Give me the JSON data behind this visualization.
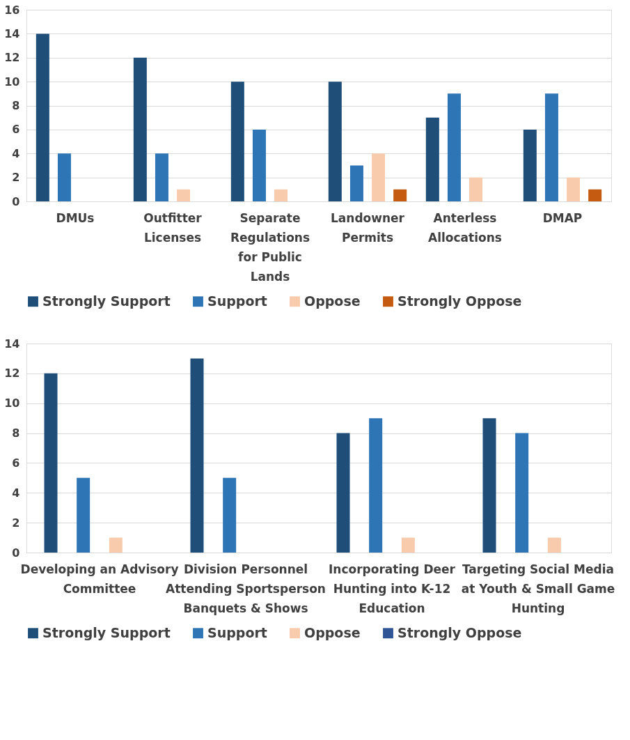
{
  "chart_data": [
    {
      "type": "bar",
      "categories": [
        "DMUs",
        "Outfitter Licenses",
        "Separate Regulations for Public Lands",
        "Landowner Permits",
        "Anterless Allocations",
        "DMAP"
      ],
      "series": [
        {
          "name": "Strongly Support",
          "color": "#1f4e79",
          "values": [
            14,
            12,
            10,
            10,
            7,
            6
          ]
        },
        {
          "name": "Support",
          "color": "#2e75b6",
          "values": [
            4,
            4,
            6,
            3,
            9,
            9
          ]
        },
        {
          "name": "Oppose",
          "color": "#f8cbad",
          "values": [
            0,
            1,
            1,
            4,
            2,
            2
          ]
        },
        {
          "name": "Strongly Oppose",
          "color": "#c55a11",
          "values": [
            0,
            0,
            0,
            1,
            0,
            1
          ]
        }
      ],
      "ylim": [
        0,
        16
      ],
      "yticks": [
        0,
        2,
        4,
        6,
        8,
        10,
        12,
        14,
        16
      ],
      "grid": "y",
      "legend": "bottom"
    },
    {
      "type": "bar",
      "categories": [
        "Developing an Advisory Committee",
        "Division Personnel Attending Sportsperson Banquets & Shows",
        "Incorporating Deer Hunting into K-12 Education",
        "Targeting Social Media at Youth & Small Game Hunting"
      ],
      "series": [
        {
          "name": "Strongly Support",
          "color": "#1f4e79",
          "values": [
            12,
            13,
            8,
            9
          ]
        },
        {
          "name": "Support",
          "color": "#2e75b6",
          "values": [
            5,
            5,
            9,
            8
          ]
        },
        {
          "name": "Oppose",
          "color": "#f8cbad",
          "values": [
            1,
            0,
            1,
            1
          ]
        },
        {
          "name": "Strongly Oppose",
          "color": "#2f5597",
          "values": [
            0,
            0,
            0,
            0
          ]
        }
      ],
      "ylim": [
        0,
        14
      ],
      "yticks": [
        0,
        2,
        4,
        6,
        8,
        10,
        12,
        14
      ],
      "grid": "y",
      "legend": "bottom"
    }
  ]
}
